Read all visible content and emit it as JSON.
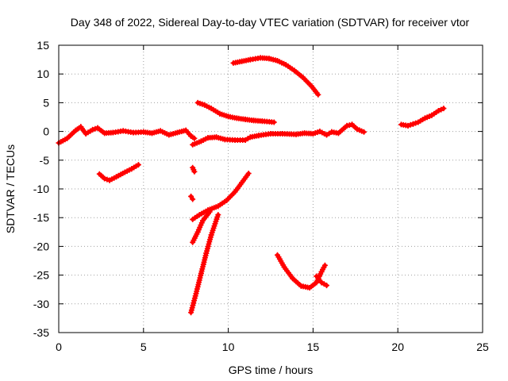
{
  "chart_data": {
    "type": "scatter",
    "title": "Day 348 of 2022, Sidereal Day-to-day VTEC variation (SDTVAR) for receiver vtor",
    "xlabel": "GPS time / hours",
    "ylabel": "SDTVAR / TECUs",
    "xlim": [
      0,
      25
    ],
    "ylim": [
      -35,
      15
    ],
    "xticks": [
      0,
      5,
      10,
      15,
      20,
      25
    ],
    "yticks": [
      15,
      10,
      5,
      0,
      -5,
      -10,
      -15,
      -20,
      -25,
      -30,
      -35
    ],
    "grid": true,
    "color": "#ff0000",
    "series": [
      {
        "segments": [
          [
            [
              0.0,
              -2.0
            ],
            [
              0.5,
              -1.2
            ],
            [
              1.0,
              0.2
            ],
            [
              1.3,
              0.8
            ],
            [
              1.6,
              -0.4
            ],
            [
              2.0,
              0.3
            ],
            [
              2.3,
              0.6
            ],
            [
              2.7,
              -0.3
            ],
            [
              3.2,
              -0.2
            ],
            [
              3.8,
              0.1
            ],
            [
              4.4,
              -0.2
            ],
            [
              5.0,
              -0.1
            ],
            [
              5.5,
              -0.3
            ],
            [
              6.0,
              0.1
            ],
            [
              6.5,
              -0.6
            ],
            [
              7.0,
              -0.2
            ],
            [
              7.5,
              0.2
            ],
            [
              7.8,
              -0.8
            ],
            [
              8.0,
              -1.2
            ]
          ],
          [
            [
              7.9,
              -2.3
            ],
            [
              8.4,
              -1.7
            ],
            [
              8.8,
              -1.1
            ],
            [
              9.3,
              -1.0
            ],
            [
              9.8,
              -1.4
            ],
            [
              10.4,
              -1.5
            ],
            [
              11.0,
              -1.5
            ],
            [
              11.3,
              -1.0
            ],
            [
              11.8,
              -0.7
            ],
            [
              12.5,
              -0.4
            ],
            [
              13.2,
              -0.4
            ],
            [
              14.0,
              -0.5
            ],
            [
              14.5,
              -0.3
            ],
            [
              15.0,
              -0.4
            ],
            [
              15.4,
              0.0
            ],
            [
              15.8,
              -0.6
            ],
            [
              16.1,
              -0.1
            ],
            [
              16.5,
              -0.3
            ],
            [
              17.0,
              1.0
            ],
            [
              17.3,
              1.2
            ],
            [
              17.6,
              0.4
            ],
            [
              18.0,
              -0.1
            ]
          ],
          [
            [
              8.2,
              5.0
            ],
            [
              8.6,
              4.6
            ],
            [
              9.0,
              4.0
            ],
            [
              9.5,
              3.1
            ],
            [
              10.0,
              2.6
            ],
            [
              10.5,
              2.3
            ],
            [
              11.0,
              2.1
            ],
            [
              11.5,
              1.9
            ],
            [
              12.0,
              1.8
            ],
            [
              12.7,
              1.6
            ]
          ],
          [
            [
              10.3,
              11.9
            ],
            [
              10.8,
              12.2
            ],
            [
              11.3,
              12.5
            ],
            [
              11.9,
              12.8
            ],
            [
              12.4,
              12.7
            ],
            [
              12.9,
              12.3
            ],
            [
              13.4,
              11.6
            ],
            [
              13.9,
              10.6
            ],
            [
              14.4,
              9.4
            ],
            [
              14.9,
              7.9
            ],
            [
              15.3,
              6.4
            ]
          ],
          [
            [
              20.2,
              1.2
            ],
            [
              20.6,
              1.0
            ],
            [
              20.9,
              1.3
            ],
            [
              21.2,
              1.6
            ],
            [
              21.6,
              2.3
            ],
            [
              22.0,
              2.8
            ],
            [
              22.4,
              3.6
            ],
            [
              22.7,
              4.0
            ]
          ],
          [
            [
              2.4,
              -7.4
            ],
            [
              2.7,
              -8.2
            ],
            [
              3.0,
              -8.5
            ],
            [
              3.4,
              -7.9
            ],
            [
              3.9,
              -7.1
            ],
            [
              4.3,
              -6.5
            ],
            [
              4.7,
              -5.8
            ]
          ],
          [
            [
              7.9,
              -6.3
            ],
            [
              8.0,
              -7.0
            ]
          ],
          [
            [
              7.8,
              -11.3
            ],
            [
              7.9,
              -11.8
            ]
          ],
          [
            [
              7.9,
              -15.3
            ],
            [
              8.3,
              -14.5
            ],
            [
              8.8,
              -13.7
            ],
            [
              9.4,
              -13.0
            ],
            [
              9.9,
              -12.0
            ],
            [
              10.4,
              -10.5
            ],
            [
              10.8,
              -8.9
            ],
            [
              11.2,
              -7.3
            ]
          ],
          [
            [
              7.8,
              -31.5
            ],
            [
              8.1,
              -28.2
            ],
            [
              8.4,
              -24.7
            ],
            [
              8.7,
              -21.2
            ],
            [
              9.0,
              -18.0
            ],
            [
              9.4,
              -14.5
            ]
          ],
          [
            [
              7.9,
              -19.3
            ],
            [
              8.2,
              -17.5
            ],
            [
              8.5,
              -15.5
            ],
            [
              8.9,
              -14.0
            ]
          ],
          [
            [
              12.9,
              -21.5
            ],
            [
              13.3,
              -23.6
            ],
            [
              13.8,
              -25.6
            ],
            [
              14.3,
              -26.9
            ],
            [
              14.8,
              -27.2
            ],
            [
              15.2,
              -26.3
            ],
            [
              15.5,
              -24.4
            ],
            [
              15.7,
              -23.3
            ]
          ],
          [
            [
              15.2,
              -25.2
            ],
            [
              15.5,
              -26.3
            ],
            [
              15.8,
              -26.8
            ]
          ]
        ]
      }
    ]
  }
}
